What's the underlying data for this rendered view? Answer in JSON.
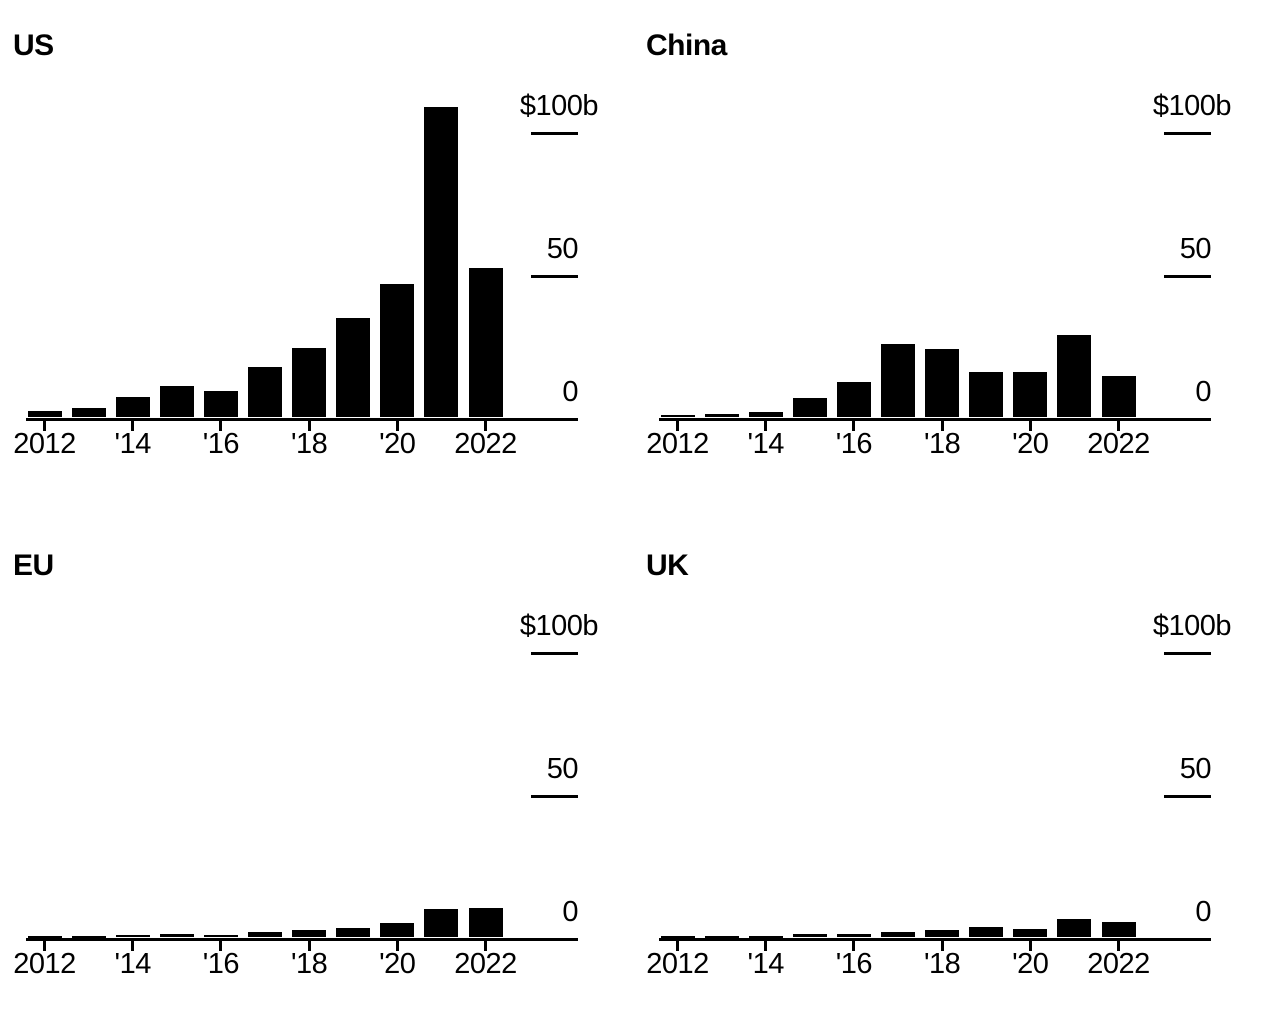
{
  "page": {
    "background": "#ffffff",
    "text_color": "#000000",
    "bar_color": "#000000"
  },
  "chart_data": [
    {
      "type": "bar",
      "title": "US",
      "categories": [
        2012,
        2013,
        2014,
        2015,
        2016,
        2017,
        2018,
        2019,
        2020,
        2021,
        2022
      ],
      "values": [
        2.3,
        3.4,
        7.2,
        11,
        9.3,
        17.8,
        24.3,
        35,
        46.7,
        109,
        52.3
      ],
      "x_tick_labels": [
        {
          "year": 2012,
          "label": "2012"
        },
        {
          "year": 2014,
          "label": "'14"
        },
        {
          "year": 2016,
          "label": "'16"
        },
        {
          "year": 2018,
          "label": "'18"
        },
        {
          "year": 2020,
          "label": "'20"
        },
        {
          "year": 2022,
          "label": "2022"
        }
      ],
      "y_ticks": [
        {
          "value": 100,
          "label": "$100b"
        },
        {
          "value": 50,
          "label": "50"
        },
        {
          "value": 0,
          "label": "0"
        }
      ],
      "ylim": [
        0,
        110
      ],
      "unit": "$ billions",
      "grid": "off",
      "legend": "none"
    },
    {
      "type": "bar",
      "title": "China",
      "categories": [
        2012,
        2013,
        2014,
        2015,
        2016,
        2017,
        2018,
        2019,
        2020,
        2021,
        2022
      ],
      "values": [
        0.9,
        1.1,
        1.8,
        6.7,
        12.5,
        25.7,
        24,
        15.8,
        15.8,
        29,
        14.4
      ],
      "x_tick_labels": [
        {
          "year": 2012,
          "label": "2012"
        },
        {
          "year": 2014,
          "label": "'14"
        },
        {
          "year": 2016,
          "label": "'16"
        },
        {
          "year": 2018,
          "label": "'18"
        },
        {
          "year": 2020,
          "label": "'20"
        },
        {
          "year": 2022,
          "label": "2022"
        }
      ],
      "y_ticks": [
        {
          "value": 100,
          "label": "$100b"
        },
        {
          "value": 50,
          "label": "50"
        },
        {
          "value": 0,
          "label": "0"
        }
      ],
      "ylim": [
        0,
        110
      ],
      "unit": "$ billions",
      "grid": "off",
      "legend": "none"
    },
    {
      "type": "bar",
      "title": "EU",
      "categories": [
        2012,
        2013,
        2014,
        2015,
        2016,
        2017,
        2018,
        2019,
        2020,
        2021,
        2022
      ],
      "values": [
        0.7,
        0.5,
        0.8,
        1.3,
        1.0,
        1.9,
        2.5,
        3.5,
        5.0,
        10.0,
        10.3
      ],
      "x_tick_labels": [
        {
          "year": 2012,
          "label": "2012"
        },
        {
          "year": 2014,
          "label": "'14"
        },
        {
          "year": 2016,
          "label": "'16"
        },
        {
          "year": 2018,
          "label": "'18"
        },
        {
          "year": 2020,
          "label": "'20"
        },
        {
          "year": 2022,
          "label": "2022"
        }
      ],
      "y_ticks": [
        {
          "value": 100,
          "label": "$100b"
        },
        {
          "value": 50,
          "label": "50"
        },
        {
          "value": 0,
          "label": "0"
        }
      ],
      "ylim": [
        0,
        110
      ],
      "unit": "$ billions",
      "grid": "off",
      "legend": "none"
    },
    {
      "type": "bar",
      "title": "UK",
      "categories": [
        2012,
        2013,
        2014,
        2015,
        2016,
        2017,
        2018,
        2019,
        2020,
        2021,
        2022
      ],
      "values": [
        0.5,
        0.5,
        0.5,
        1.1,
        1.1,
        2.0,
        2.6,
        3.7,
        3.1,
        6.6,
        5.5
      ],
      "x_tick_labels": [
        {
          "year": 2012,
          "label": "2012"
        },
        {
          "year": 2014,
          "label": "'14"
        },
        {
          "year": 2016,
          "label": "'16"
        },
        {
          "year": 2018,
          "label": "'18"
        },
        {
          "year": 2020,
          "label": "'20"
        },
        {
          "year": 2022,
          "label": "2022"
        }
      ],
      "y_ticks": [
        {
          "value": 100,
          "label": "$100b"
        },
        {
          "value": 50,
          "label": "50"
        },
        {
          "value": 0,
          "label": "0"
        }
      ],
      "ylim": [
        0,
        110
      ],
      "unit": "$ billions",
      "grid": "off",
      "legend": "none"
    }
  ]
}
